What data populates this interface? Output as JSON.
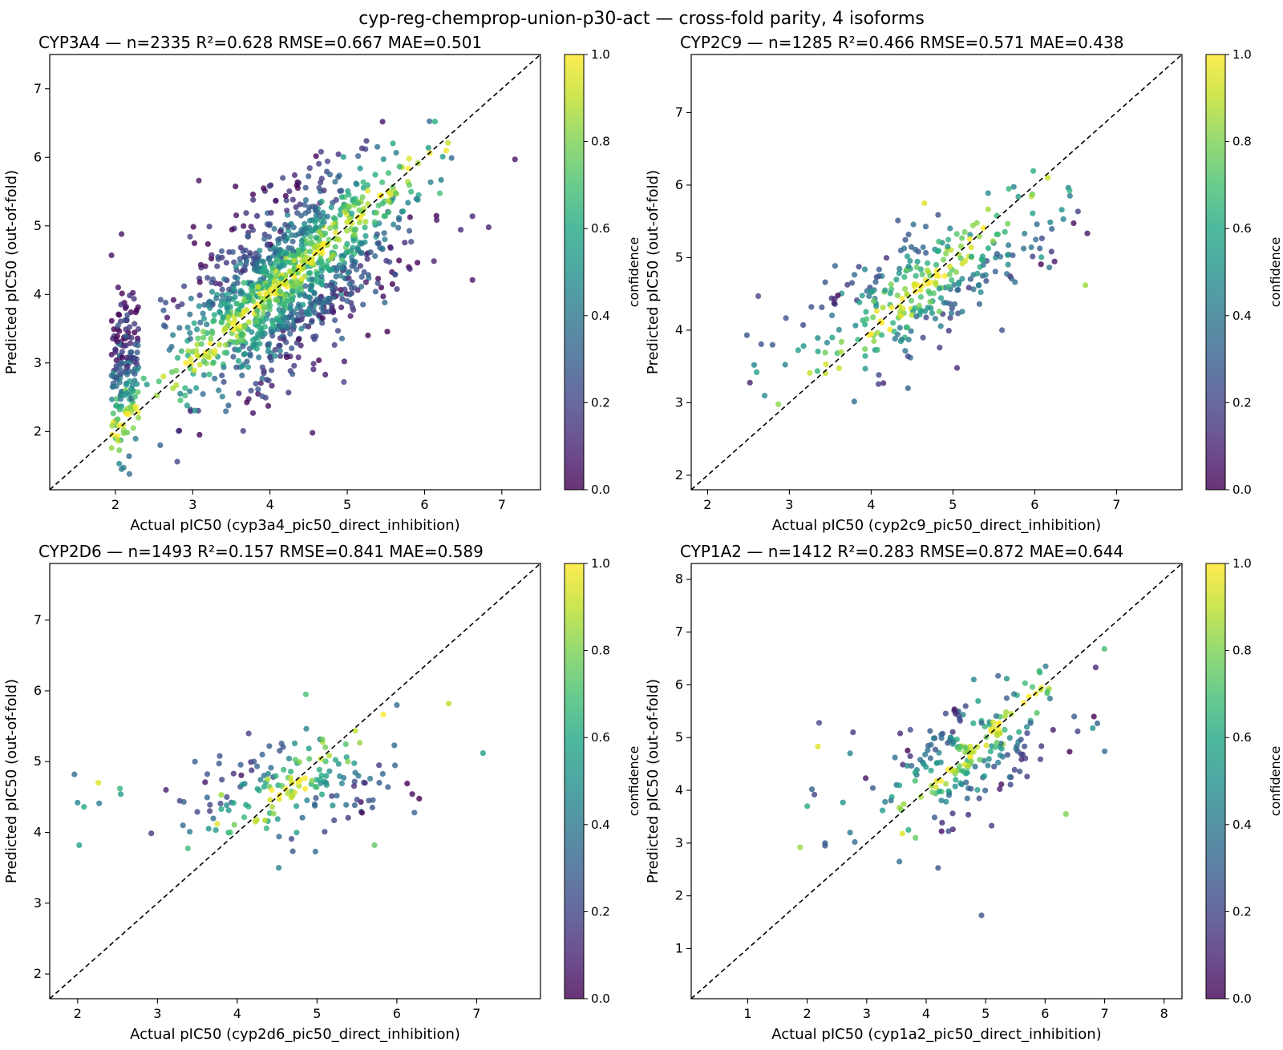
{
  "figure": {
    "title": "cyp-reg-chemprop-union-p30-act — cross-fold parity, 4 isoforms",
    "colormap": "viridis",
    "point_alpha": 0.8,
    "colorbar_label": "confidence",
    "colorbar_ticks": [
      "0.0",
      "0.2",
      "0.4",
      "0.6",
      "0.8",
      "1.0"
    ]
  },
  "chart_data": [
    {
      "type": "scatter",
      "id": "cyp3a4",
      "title": "CYP3A4  —  n=2335   R²=0.628  RMSE=0.667  MAE=0.501",
      "xlabel": "Actual pIC50 (cyp3a4_pic50_direct_inhibition)",
      "ylabel": "Predicted pIC50 (out-of-fold)",
      "xlim": [
        1.15,
        7.5
      ],
      "ylim": [
        1.15,
        7.5
      ],
      "xticks": [
        2,
        3,
        4,
        5,
        6,
        7
      ],
      "yticks": [
        2,
        3,
        4,
        5,
        6,
        7
      ],
      "grid": false,
      "diagonal": true,
      "colorbar": "right",
      "n_points_drawn": 1400,
      "distribution": {
        "x_range": [
          1.9,
          7.2
        ],
        "x_mode": 4.3,
        "slope": 0.65,
        "intercept": 1.45,
        "noise_sd": 0.62,
        "low_x_cluster": [
          1.95,
          2.3
        ],
        "confidence": "high near diagonal, low far from it"
      },
      "points": [
        {
          "x": 7.17,
          "y": 5.97,
          "c": 0.05
        },
        {
          "x": 6.83,
          "y": 4.98,
          "c": 0.08
        },
        {
          "x": 6.62,
          "y": 4.21,
          "c": 0.05
        },
        {
          "x": 6.62,
          "y": 5.14,
          "c": 0.1
        },
        {
          "x": 6.35,
          "y": 5.99,
          "c": 0.35
        },
        {
          "x": 6.05,
          "y": 6.14,
          "c": 0.55
        },
        {
          "x": 5.8,
          "y": 5.98,
          "c": 0.95
        },
        {
          "x": 3.08,
          "y": 5.66,
          "c": 0.05
        },
        {
          "x": 2.08,
          "y": 4.88,
          "c": 0.05
        },
        {
          "x": 2.08,
          "y": 1.45,
          "c": 0.4
        },
        {
          "x": 2.05,
          "y": 1.53,
          "c": 0.45
        },
        {
          "x": 4.55,
          "y": 1.98,
          "c": 0.05
        },
        {
          "x": 2.58,
          "y": 1.8,
          "c": 0.3
        },
        {
          "x": 1.95,
          "y": 4.57,
          "c": 0.05
        },
        {
          "x": 4.32,
          "y": 5.74,
          "c": 0.1
        }
      ]
    },
    {
      "type": "scatter",
      "id": "cyp2c9",
      "title": "CYP2C9  —  n=1285   R²=0.466  RMSE=0.571  MAE=0.438",
      "xlabel": "Actual pIC50 (cyp2c9_pic50_direct_inhibition)",
      "ylabel": "Predicted pIC50 (out-of-fold)",
      "xlim": [
        1.8,
        7.8
      ],
      "ylim": [
        1.8,
        7.8
      ],
      "xticks": [
        2,
        3,
        4,
        5,
        6,
        7
      ],
      "yticks": [
        2,
        3,
        4,
        5,
        6,
        7
      ],
      "grid": false,
      "diagonal": true,
      "colorbar": "right",
      "n_points_drawn": 320,
      "distribution": {
        "x_range": [
          2.5,
          6.7
        ],
        "x_mode": 4.7,
        "slope": 0.55,
        "intercept": 2.1,
        "noise_sd": 0.42,
        "confidence": "mixed, mostly medium"
      },
      "points": [
        {
          "x": 2.48,
          "y": 3.93,
          "c": 0.25
        },
        {
          "x": 2.57,
          "y": 3.52,
          "c": 0.45
        },
        {
          "x": 2.6,
          "y": 3.42,
          "c": 0.55
        },
        {
          "x": 2.62,
          "y": 4.47,
          "c": 0.2
        },
        {
          "x": 6.62,
          "y": 4.62,
          "c": 0.85
        },
        {
          "x": 6.35,
          "y": 5.53,
          "c": 0.45
        },
        {
          "x": 6.33,
          "y": 5.66,
          "c": 0.5
        },
        {
          "x": 5.8,
          "y": 5.84,
          "c": 0.55
        },
        {
          "x": 4.65,
          "y": 5.75,
          "c": 0.95
        },
        {
          "x": 4.45,
          "y": 3.2,
          "c": 0.3
        },
        {
          "x": 4.15,
          "y": 3.27,
          "c": 0.1
        },
        {
          "x": 5.05,
          "y": 3.48,
          "c": 0.1
        },
        {
          "x": 5.6,
          "y": 4.0,
          "c": 0.25
        },
        {
          "x": 3.25,
          "y": 3.41,
          "c": 0.9
        }
      ]
    },
    {
      "type": "scatter",
      "id": "cyp2d6",
      "title": "CYP2D6  —  n=1493   R²=0.157  RMSE=0.841  MAE=0.589",
      "xlabel": "Actual pIC50 (cyp2d6_pic50_direct_inhibition)",
      "ylabel": "Predicted pIC50 (out-of-fold)",
      "xlim": [
        1.65,
        7.8
      ],
      "ylim": [
        1.65,
        7.8
      ],
      "xticks": [
        2,
        3,
        4,
        5,
        6,
        7
      ],
      "yticks": [
        2,
        3,
        4,
        5,
        6,
        7
      ],
      "grid": false,
      "diagonal": true,
      "colorbar": "right",
      "n_points_drawn": 170,
      "distribution": {
        "x_range": [
          1.95,
          7.1
        ],
        "x_mode": 4.7,
        "slope": 0.15,
        "intercept": 3.95,
        "noise_sd": 0.35,
        "confidence": "mixed"
      },
      "points": [
        {
          "x": 1.96,
          "y": 4.82,
          "c": 0.35
        },
        {
          "x": 2.0,
          "y": 4.42,
          "c": 0.45
        },
        {
          "x": 2.02,
          "y": 3.82,
          "c": 0.55
        },
        {
          "x": 2.08,
          "y": 4.36,
          "c": 0.6
        },
        {
          "x": 2.26,
          "y": 4.7,
          "c": 0.95
        },
        {
          "x": 2.27,
          "y": 4.41,
          "c": 0.4
        },
        {
          "x": 2.53,
          "y": 4.62,
          "c": 0.65
        },
        {
          "x": 2.54,
          "y": 4.54,
          "c": 0.55
        },
        {
          "x": 3.32,
          "y": 4.1,
          "c": 0.35
        },
        {
          "x": 3.33,
          "y": 4.43,
          "c": 0.3
        },
        {
          "x": 3.47,
          "y": 5.0,
          "c": 0.3
        },
        {
          "x": 3.5,
          "y": 4.29,
          "c": 0.2
        },
        {
          "x": 3.75,
          "y": 4.12,
          "c": 0.95
        },
        {
          "x": 3.8,
          "y": 4.33,
          "c": 0.6
        },
        {
          "x": 3.8,
          "y": 4.53,
          "c": 0.85
        },
        {
          "x": 3.78,
          "y": 5.08,
          "c": 0.25
        },
        {
          "x": 4.86,
          "y": 5.95,
          "c": 0.7
        },
        {
          "x": 4.52,
          "y": 3.5,
          "c": 0.45
        },
        {
          "x": 4.98,
          "y": 3.73,
          "c": 0.35
        },
        {
          "x": 5.72,
          "y": 3.82,
          "c": 0.75
        },
        {
          "x": 6.0,
          "y": 5.8,
          "c": 0.35
        },
        {
          "x": 6.65,
          "y": 5.82,
          "c": 0.9
        },
        {
          "x": 7.08,
          "y": 5.12,
          "c": 0.55
        },
        {
          "x": 6.22,
          "y": 4.28,
          "c": 0.3
        }
      ]
    },
    {
      "type": "scatter",
      "id": "cyp1a2",
      "title": "CYP1A2  —  n=1412   R²=0.283  RMSE=0.872  MAE=0.644",
      "xlabel": "Actual pIC50 (cyp1a2_pic50_direct_inhibition)",
      "ylabel": "Predicted pIC50 (out-of-fold)",
      "xlim": [
        0.05,
        8.3
      ],
      "ylim": [
        0.05,
        8.3
      ],
      "xticks": [
        1,
        2,
        3,
        4,
        5,
        6,
        7,
        8
      ],
      "yticks": [
        1,
        2,
        3,
        4,
        5,
        6,
        7,
        8
      ],
      "grid": false,
      "diagonal": true,
      "colorbar": "right",
      "n_points_drawn": 230,
      "distribution": {
        "x_range": [
          1.9,
          7.0
        ],
        "x_mode": 4.8,
        "slope": 0.45,
        "intercept": 2.6,
        "noise_sd": 0.5,
        "confidence": "mixed"
      },
      "points": [
        {
          "x": 1.88,
          "y": 2.92,
          "c": 0.85
        },
        {
          "x": 2.0,
          "y": 3.7,
          "c": 0.6
        },
        {
          "x": 2.08,
          "y": 4.02,
          "c": 0.3
        },
        {
          "x": 2.12,
          "y": 3.92,
          "c": 0.2
        },
        {
          "x": 2.18,
          "y": 4.83,
          "c": 0.95
        },
        {
          "x": 2.2,
          "y": 5.28,
          "c": 0.2
        },
        {
          "x": 2.3,
          "y": 2.95,
          "c": 0.25
        },
        {
          "x": 2.3,
          "y": 3.0,
          "c": 0.3
        },
        {
          "x": 2.6,
          "y": 3.77,
          "c": 0.5
        },
        {
          "x": 2.72,
          "y": 3.2,
          "c": 0.4
        },
        {
          "x": 2.72,
          "y": 4.7,
          "c": 0.45
        },
        {
          "x": 2.77,
          "y": 5.1,
          "c": 0.15
        },
        {
          "x": 2.8,
          "y": 3.02,
          "c": 0.35
        },
        {
          "x": 3.55,
          "y": 2.65,
          "c": 0.35
        },
        {
          "x": 4.2,
          "y": 2.53,
          "c": 0.25
        },
        {
          "x": 4.93,
          "y": 1.63,
          "c": 0.25
        },
        {
          "x": 4.8,
          "y": 6.1,
          "c": 0.45
        },
        {
          "x": 6.85,
          "y": 6.33,
          "c": 0.1
        },
        {
          "x": 6.8,
          "y": 5.18,
          "c": 0.5
        },
        {
          "x": 7.0,
          "y": 4.74,
          "c": 0.35
        },
        {
          "x": 6.35,
          "y": 3.55,
          "c": 0.8
        },
        {
          "x": 3.6,
          "y": 3.18,
          "c": 0.95
        },
        {
          "x": 3.82,
          "y": 3.1,
          "c": 0.75
        },
        {
          "x": 5.1,
          "y": 3.33,
          "c": 0.15
        }
      ]
    }
  ]
}
